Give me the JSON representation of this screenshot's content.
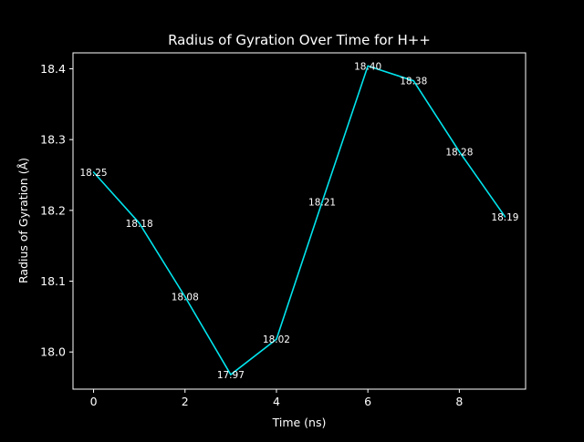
{
  "chart_data": {
    "type": "line",
    "title": "Radius of Gyration Over Time for H++",
    "xlabel": "Time (ns)",
    "ylabel": "Radius of Gyration (Å)",
    "xlim": [
      -0.45,
      9.45
    ],
    "ylim": [
      17.9475,
      18.4225
    ],
    "x_ticks": [
      0,
      2,
      4,
      6,
      8
    ],
    "y_ticks": [
      18.0,
      18.1,
      18.2,
      18.3,
      18.4
    ],
    "x_tick_labels": [
      "0",
      "2",
      "4",
      "6",
      "8"
    ],
    "y_tick_labels": [
      "18.0",
      "18.1",
      "18.2",
      "18.3",
      "18.4"
    ],
    "grid": false,
    "series": [
      {
        "x": [
          0,
          1,
          2,
          3,
          4,
          5,
          6,
          7,
          8,
          9
        ],
        "values": [
          18.254,
          18.182,
          18.078,
          17.968,
          18.018,
          18.212,
          18.404,
          18.383,
          18.283,
          18.191
        ],
        "labels": [
          "18.25",
          "18.18",
          "18.08",
          "17.97",
          "18.02",
          "18.21",
          "18.40",
          "18.38",
          "18.28",
          "18.19"
        ],
        "color": "#00e5ee"
      }
    ],
    "colors": {
      "background": "#000000",
      "axes": "#ffffff",
      "text": "#ffffff"
    }
  }
}
